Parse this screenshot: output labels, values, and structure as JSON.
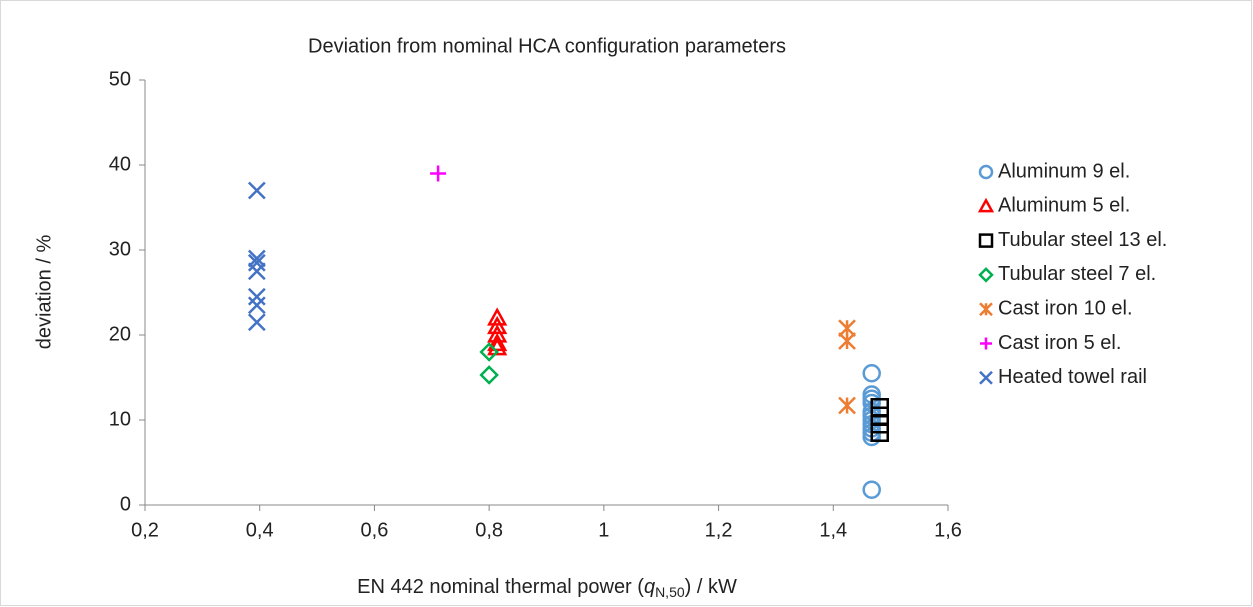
{
  "chart_data": {
    "type": "scatter",
    "title": "Deviation from nominal HCA configuration parameters",
    "xlabel": {
      "prefix": "EN 442 nominal thermal power (",
      "symbol": "q",
      "subscript": "N,50",
      "suffix": ") / kW"
    },
    "ylabel": "deviation / %",
    "xlim": [
      0.2,
      1.6
    ],
    "xticks": [
      {
        "value": 0.2,
        "label": "0,2"
      },
      {
        "value": 0.4,
        "label": "0,4"
      },
      {
        "value": 0.6,
        "label": "0,6"
      },
      {
        "value": 0.8,
        "label": "0,8"
      },
      1,
      {
        "value": 1.2,
        "label": "1,2"
      },
      {
        "value": 1.4,
        "label": "1,4"
      },
      {
        "value": 1.6,
        "label": "1,6"
      }
    ],
    "ylim": [
      0,
      50
    ],
    "yticks": [
      0,
      10,
      20,
      30,
      40,
      50
    ],
    "grid": false,
    "legend": "right",
    "series": [
      {
        "name": "Aluminum 9 el.",
        "color": "#5b9bd5",
        "marker": "circle",
        "x": [
          1.467,
          1.467,
          1.467,
          1.467,
          1.467,
          1.467,
          1.467,
          1.467,
          1.467,
          1.467,
          1.467,
          1.467
        ],
        "values": [
          15.5,
          13,
          12.5,
          12,
          11,
          10.5,
          10,
          9.5,
          9,
          8.5,
          8,
          1.8
        ]
      },
      {
        "name": "Aluminum 5 el.",
        "color": "#ff0000",
        "marker": "triangle",
        "x": [
          0.814,
          0.814,
          0.814,
          0.814,
          0.814
        ],
        "values": [
          22,
          21,
          20,
          19,
          18.5
        ]
      },
      {
        "name": "Tubular steel 13 el.",
        "color": "#000000",
        "marker": "square",
        "x": [
          1.481,
          1.481,
          1.481,
          1.481
        ],
        "values": [
          11.5,
          10.5,
          9.5,
          8.5
        ]
      },
      {
        "name": "Tubular steel 7 el.",
        "color": "#00b050",
        "marker": "diamond",
        "x": [
          0.8,
          0.8
        ],
        "values": [
          18,
          15.3
        ]
      },
      {
        "name": "Cast iron 10 el.",
        "color": "#ed7d31",
        "marker": "asterisk",
        "x": [
          1.424,
          1.424,
          1.424
        ],
        "values": [
          20.8,
          19.3,
          11.7
        ]
      },
      {
        "name": "Cast iron 5 el.",
        "color": "#ff00ff",
        "marker": "plus",
        "x": [
          0.711
        ],
        "values": [
          39
        ]
      },
      {
        "name": "Heated towel rail",
        "color": "#4472c4",
        "marker": "x",
        "x": [
          0.395,
          0.395,
          0.395,
          0.395,
          0.395,
          0.395,
          0.395
        ],
        "values": [
          37,
          29,
          28.5,
          27.5,
          24.5,
          23.5,
          21.5
        ]
      }
    ]
  }
}
